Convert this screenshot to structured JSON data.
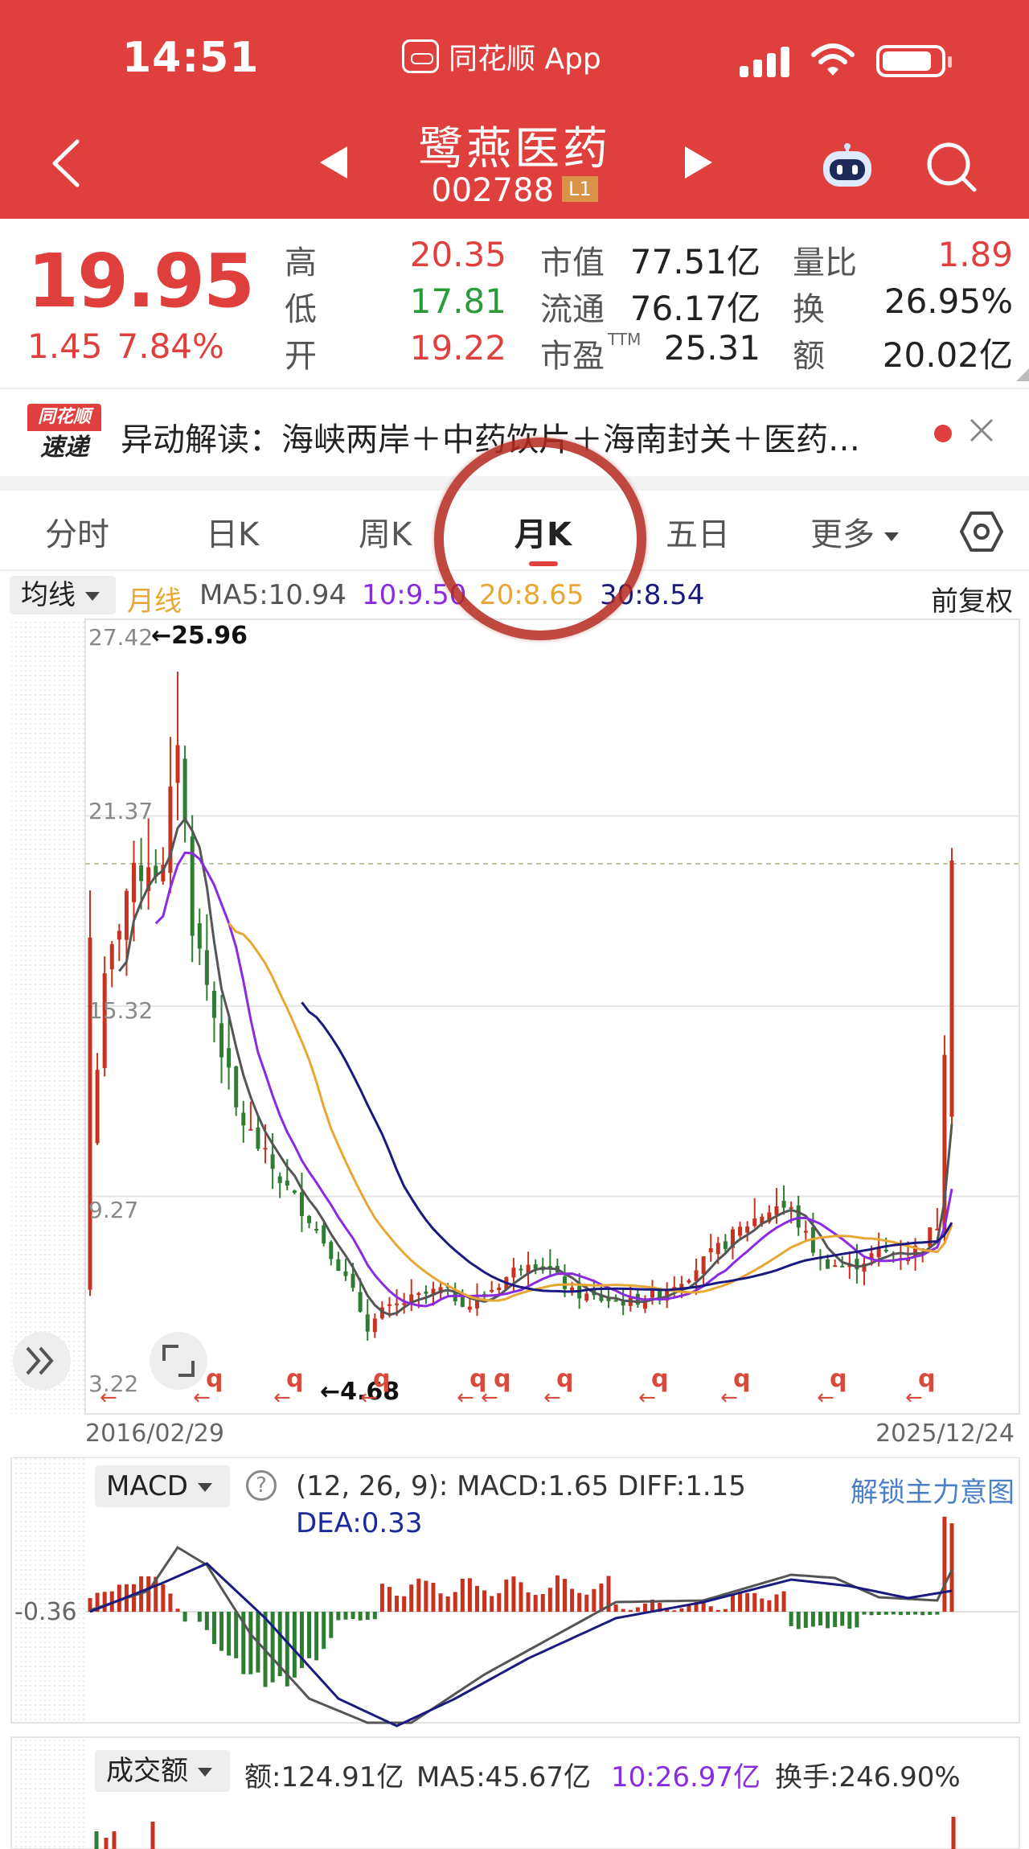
{
  "status_bar": {
    "time": "14:51",
    "app_name": "同花顺 App",
    "icons": [
      "signal-icon",
      "wifi-icon",
      "battery-icon"
    ]
  },
  "header": {
    "stock_name": "鹭燕医药",
    "stock_code": "002788",
    "badge": "L1",
    "icons": [
      "back-icon",
      "prev-stock-icon",
      "next-stock-icon",
      "robot-icon",
      "search-icon"
    ]
  },
  "quote": {
    "price": "19.95",
    "change": "1.45",
    "change_pct": "7.84%",
    "high_label": "高",
    "high": "20.35",
    "low_label": "低",
    "low": "17.81",
    "open_label": "开",
    "open": "19.22",
    "mktcap_label": "市值",
    "mktcap": "77.51亿",
    "float_label": "流通",
    "float": "76.17亿",
    "pe_label": "市盈",
    "pe_sup": "TTM",
    "pe": "25.31",
    "vol_ratio_label": "量比",
    "vol_ratio": "1.89",
    "turnover_label": "换",
    "turnover": "26.95%",
    "amount_label": "额",
    "amount": "20.02亿"
  },
  "news": {
    "logo_top": "同花顺",
    "logo_bottom": "速递",
    "text": "异动解读：海峡两岸＋中药饮片＋海南封关＋医药…"
  },
  "tabs": {
    "items": [
      {
        "label": "分时"
      },
      {
        "label": "日K"
      },
      {
        "label": "周K"
      },
      {
        "label": "月K"
      },
      {
        "label": "五日"
      },
      {
        "label": "更多"
      }
    ],
    "active": "月K"
  },
  "ma_bar": {
    "selector": "均线",
    "period": "月线",
    "ma5": "MA5:10.94",
    "ma10": "10:9.50",
    "ma20": "20:8.65",
    "ma30": "30:8.54",
    "adjust": "前复权"
  },
  "kline": {
    "y_ticks": [
      "27.42",
      "21.37",
      "15.32",
      "9.27",
      "3.22"
    ],
    "max_label": "←25.96",
    "min_label": "←4.68",
    "start_date": "2016/02/29",
    "end_date": "2025/12/24",
    "q_marker": "q",
    "colors": {
      "up": "#c8321e",
      "down": "#2e7d32",
      "ma5": "#555555",
      "ma10": "#8a2be2",
      "ma20": "#e8a735",
      "ma30": "#1a1a80"
    }
  },
  "macd": {
    "selector": "MACD",
    "params": "(12, 26, 9):  MACD:1.65   DIFF:1.15",
    "dea": "DEA:0.33",
    "unlock": "解锁主力意图",
    "y_tick": "-0.36"
  },
  "volume": {
    "selector": "成交额",
    "amount": "额:124.91亿",
    "ma5": "MA5:45.67亿",
    "ma10": "10:26.97亿",
    "turnover": "换手:246.90%"
  },
  "chart_data": {
    "type": "candlestick",
    "period": "monthly",
    "x_range": [
      "2016/02/29",
      "2025/12/24"
    ],
    "ylim": [
      3.22,
      27.42
    ],
    "y_ticks": [
      27.42,
      21.37,
      15.32,
      9.27,
      3.22
    ],
    "annotations": [
      {
        "text": "←25.96",
        "value": 25.96
      },
      {
        "text": "←4.68",
        "value": 4.68
      }
    ],
    "last_close": 19.95,
    "series": [
      {
        "name": "MA5",
        "value": 10.94
      },
      {
        "name": "10",
        "value": 9.5
      },
      {
        "name": "20",
        "value": 8.65
      },
      {
        "name": "30",
        "value": 8.54
      }
    ]
  }
}
